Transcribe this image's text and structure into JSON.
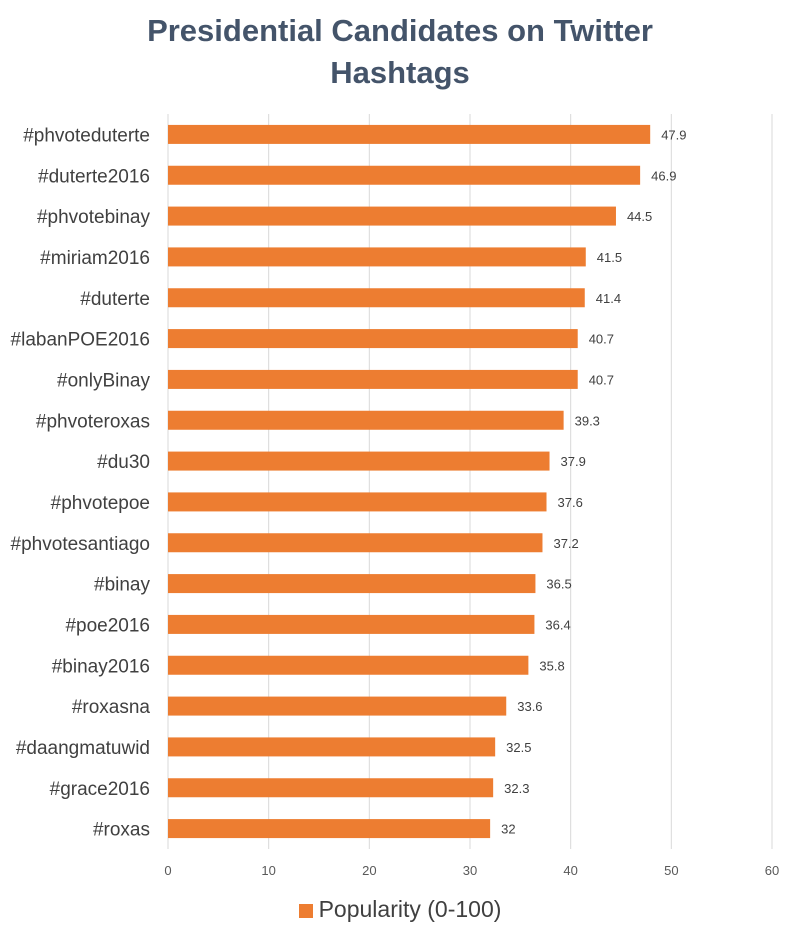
{
  "chart_data": {
    "type": "bar",
    "orientation": "horizontal",
    "title_lines": [
      "Presidential Candidates on Twitter",
      "Hashtags"
    ],
    "categories": [
      "#phvoteduterte",
      "#duterte2016",
      "#phvotebinay",
      "#miriam2016",
      "#duterte",
      "#labanPOE2016",
      "#onlyBinay",
      "#phvoteroxas",
      "#du30",
      "#phvotepoe",
      "#phvotesantiago",
      "#binay",
      "#poe2016",
      "#binay2016",
      "#roxasna",
      "#daangmatuwid",
      "#grace2016",
      "#roxas"
    ],
    "series": [
      {
        "name": "Popularity (0-100)",
        "color": "#ed7d31",
        "values": [
          47.9,
          46.9,
          44.5,
          41.5,
          41.4,
          40.7,
          40.7,
          39.3,
          37.9,
          37.6,
          37.2,
          36.5,
          36.4,
          35.8,
          33.6,
          32.5,
          32.3,
          32
        ]
      }
    ],
    "x_ticks": [
      0,
      10,
      20,
      30,
      40,
      50,
      60
    ],
    "xlim": [
      0,
      60
    ],
    "grid": true,
    "legend_position": "bottom"
  }
}
